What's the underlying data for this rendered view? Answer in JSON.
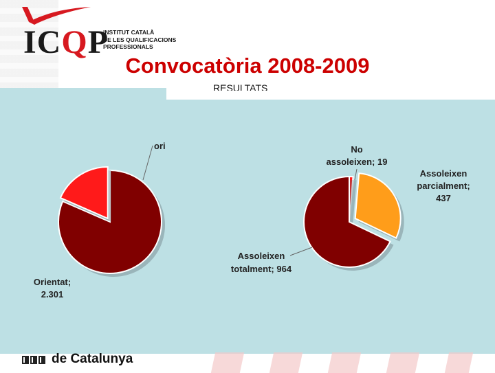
{
  "header": {
    "logo": {
      "main_prefix": "IC",
      "main_q": "Q",
      "main_suffix": "P",
      "sub_lines": [
        "INSTITUT CATALÀ",
        "DE LES QUALIFICACIONS",
        "PROFESSIONALS"
      ]
    },
    "title": "Convocatòria 2008-2009",
    "subtitle": "RESULTATS"
  },
  "footer": {
    "text": "de Catalunya"
  },
  "colors": {
    "dark_red": "#800000",
    "red": "#ff1a1a",
    "orange": "#ff9d1a",
    "panel": "#bde0e4",
    "title": "#cc0000"
  },
  "chart_data": [
    {
      "type": "pie",
      "slices": [
        {
          "label": "Orientat; 2.301",
          "value": 2301,
          "color": "#800000"
        },
        {
          "label": "ori",
          "value": 521,
          "color": "#ff1a1a"
        }
      ]
    },
    {
      "type": "pie",
      "slices": [
        {
          "label": "No assoleixen; 19",
          "value": 19,
          "color": "#ff1a1a"
        },
        {
          "label": "Assoleixen parcialment; 437",
          "value": 437,
          "color": "#ff9d1a"
        },
        {
          "label": "Assoleixen totalment; 964",
          "value": 964,
          "color": "#800000"
        }
      ]
    }
  ]
}
